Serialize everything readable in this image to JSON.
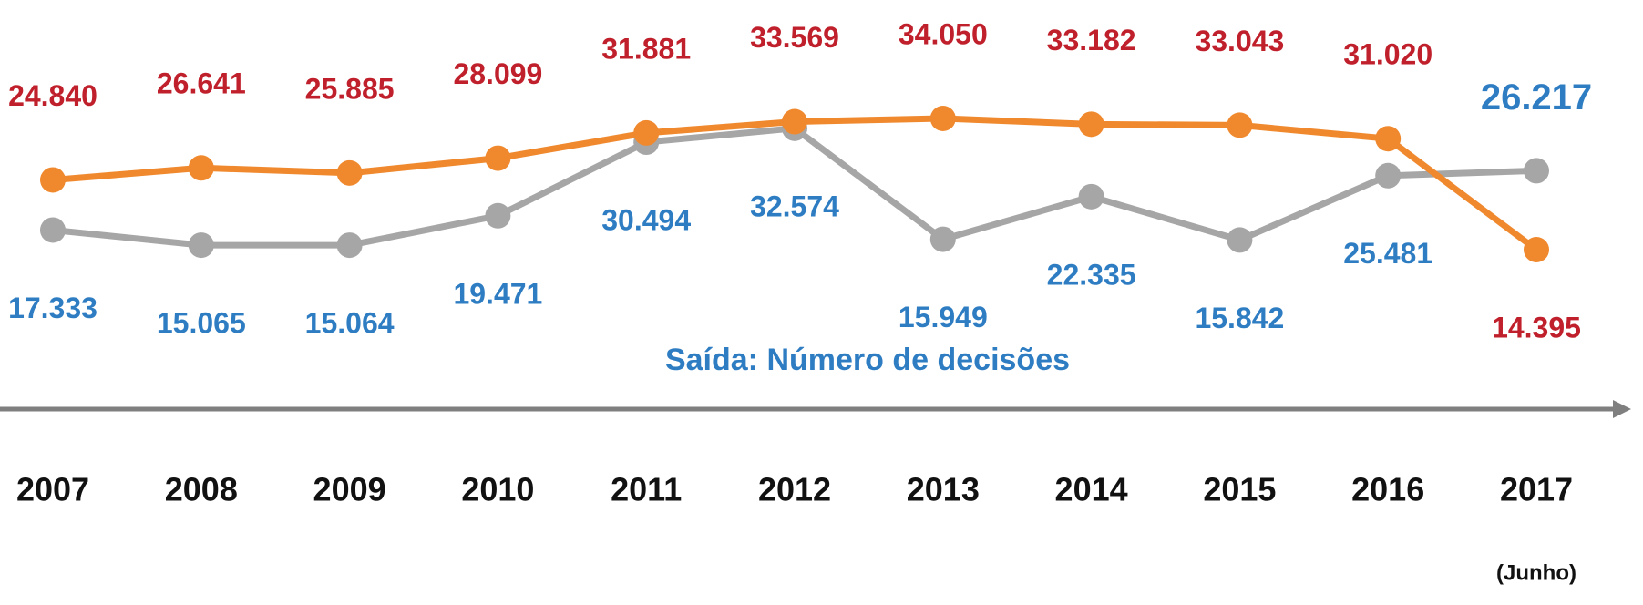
{
  "chart_data": {
    "type": "line",
    "categories": [
      "2007",
      "2008",
      "2009",
      "2010",
      "2011",
      "2012",
      "2013",
      "2014",
      "2015",
      "2016",
      "2017"
    ],
    "category_note": "(Junho)",
    "series": [
      {
        "color": "#f0892e",
        "label_color": "#c0202b",
        "values": [
          24840,
          26641,
          25885,
          28099,
          31881,
          33569,
          34050,
          33182,
          33043,
          31020,
          14395
        ],
        "value_labels": [
          "24.840",
          "26.641",
          "25.885",
          "28.099",
          "31.881",
          "33.569",
          "34.050",
          "33.182",
          "33.043",
          "31.020",
          "14.395"
        ]
      },
      {
        "name": "Saída: Número de decisões",
        "color": "#a6a6a6",
        "label_color": "#2e7dc3",
        "values": [
          17333,
          15065,
          15064,
          19471,
          30494,
          32574,
          15949,
          22335,
          15842,
          25481,
          26217
        ],
        "value_labels": [
          "17.333",
          "15.065",
          "15.064",
          "19.471",
          "30.494",
          "32.574",
          "15.949",
          "22.335",
          "15.842",
          "25.481",
          "26.217"
        ]
      }
    ]
  }
}
